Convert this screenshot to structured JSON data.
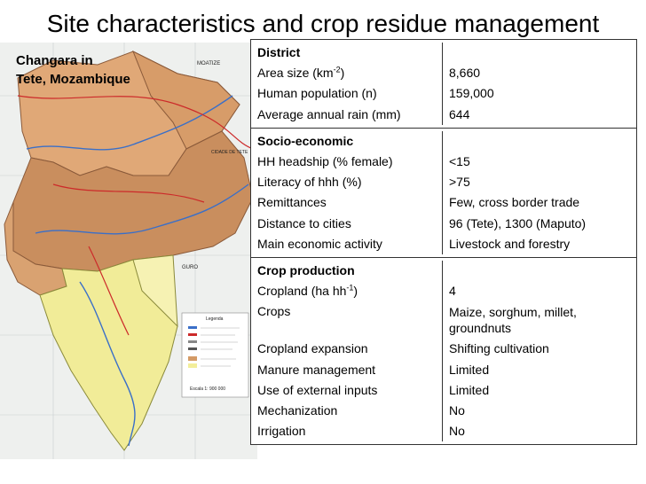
{
  "slide": {
    "title": "Site characteristics and crop residue management",
    "map_caption_line1": "Changara in",
    "map_caption_line2": "Tete, Mozambique"
  },
  "table": {
    "district": {
      "header": "District",
      "rows": [
        {
          "k_pre": "Area size (km",
          "k_sup": "-2",
          "k_post": ")",
          "v": "8,660"
        },
        {
          "k": "Human population (n)",
          "v": "159,000"
        },
        {
          "k": "Average annual rain (mm)",
          "v": "644"
        }
      ]
    },
    "socio": {
      "header": "Socio-economic",
      "rows": [
        {
          "k": "HH headship (% female)",
          "v": "<15"
        },
        {
          "k": "Literacy of hhh (%)",
          "v": ">75"
        },
        {
          "k": "Remittances",
          "v": "Few, cross border trade"
        },
        {
          "k": "Distance to cities",
          "v": "96 (Tete), 1300 (Maputo)"
        },
        {
          "k": "Main economic activity",
          "v": "Livestock and forestry"
        }
      ]
    },
    "crop": {
      "header": "Crop production",
      "rows": [
        {
          "k_pre": "Cropland (ha hh",
          "k_sup": "-1",
          "k_post": ")",
          "v": "4"
        },
        {
          "k": "Crops",
          "v": "Maize, sorghum, millet, groundnuts"
        },
        {
          "k": "Cropland expansion",
          "v": "Shifting  cultivation"
        },
        {
          "k": "Manure management",
          "v": "Limited"
        },
        {
          "k": "Use of external inputs",
          "v": "Limited"
        },
        {
          "k": "Mechanization",
          "v": "No"
        },
        {
          "k": "Irrigation",
          "v": "No"
        }
      ]
    }
  },
  "map_labels": {
    "cidade": "CIDADE DE TETE",
    "moatize": "MOATIZE",
    "guro": "GURO",
    "legend_title": "Legenda",
    "scale": "Escala 1: 900 000"
  },
  "colors": {
    "region_orange": "#d49a66",
    "region_light_orange": "#e8b07c",
    "region_yellow": "#f3ee9a",
    "outside": "#eef0ee",
    "river": "#3a6fc8",
    "road": "#cc2a2a"
  }
}
